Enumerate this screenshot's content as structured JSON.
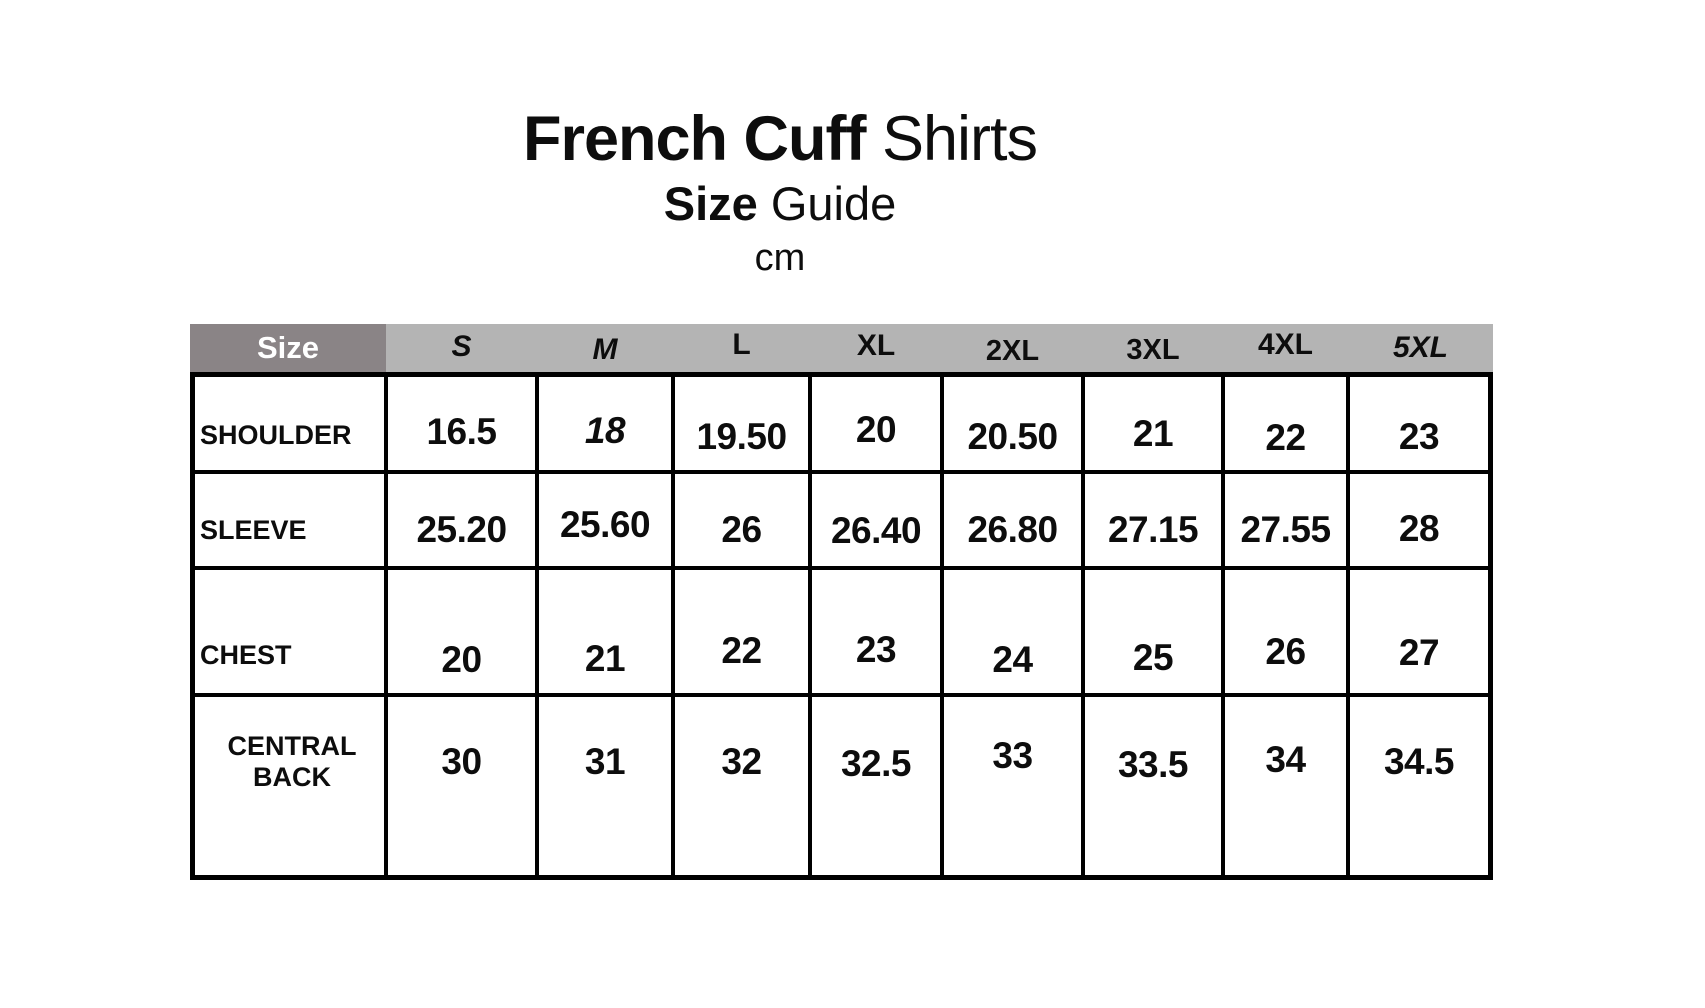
{
  "page": {
    "title_bold": "French Cuff",
    "title_regular": " Shirts",
    "subtitle_bold": "Size",
    "subtitle_regular": " Guide",
    "unit": "cm"
  },
  "colors": {
    "corner_header_bg": "#8a8486",
    "size_header_bg": "#b4b4b4",
    "grid_border": "#000000",
    "text": "#0d0d0d",
    "corner_text": "#ffffff",
    "background": "#ffffff"
  },
  "chart_data": {
    "type": "table",
    "title": "French Cuff Shirts Size Guide",
    "unit": "cm",
    "corner_label": "Size",
    "columns": [
      "S",
      "M",
      "L",
      "XL",
      "2XL",
      "3XL",
      "4XL",
      "5XL"
    ],
    "rows": [
      {
        "label": "SHOULDER",
        "values": [
          "16.5",
          "18",
          "19.50",
          "20",
          "20.50",
          "21",
          "22",
          "23"
        ]
      },
      {
        "label": "SLEEVE",
        "values": [
          "25.20",
          "25.60",
          "26",
          "26.40",
          "26.80",
          "27.15",
          "27.55",
          "28"
        ]
      },
      {
        "label": "CHEST",
        "values": [
          "20",
          "21",
          "22",
          "23",
          "24",
          "25",
          "26",
          "27"
        ]
      },
      {
        "label": "CENTRAL BACK",
        "values": [
          "30",
          "31",
          "32",
          "32.5",
          "33",
          "33.5",
          "34",
          "34.5"
        ]
      }
    ]
  }
}
